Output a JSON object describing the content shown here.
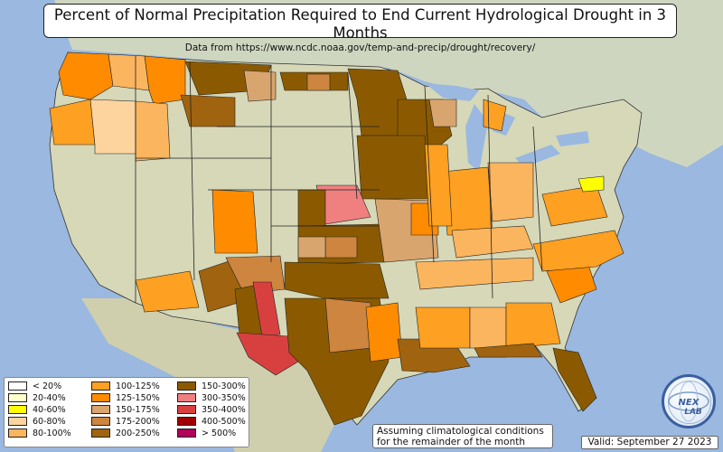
{
  "title": {
    "main": "Percent of Normal Precipitation Required to End Current Hydrological Drought in 3 Months",
    "source": "Data from https://www.ncdc.noaa.gov/temp-and-precip/drought/recovery/"
  },
  "legend": {
    "items": [
      {
        "label": "< 20%",
        "color": "#ffffff"
      },
      {
        "label": "20-40%",
        "color": "#ffffcc"
      },
      {
        "label": "40-60%",
        "color": "#ffff00"
      },
      {
        "label": "60-80%",
        "color": "#fdd49e"
      },
      {
        "label": "80-100%",
        "color": "#fbb55e"
      },
      {
        "label": "100-125%",
        "color": "#fea021"
      },
      {
        "label": "125-150%",
        "color": "#ff8c00"
      },
      {
        "label": "150-175%",
        "color": "#d9a56e"
      },
      {
        "label": "175-200%",
        "color": "#cd853f"
      },
      {
        "label": "200-250%",
        "color": "#a0630f"
      },
      {
        "label": "150-300%",
        "color": "#8b5a00"
      },
      {
        "label": "300-350%",
        "color": "#f08080"
      },
      {
        "label": "350-400%",
        "color": "#d84040"
      },
      {
        "label": "400-500%",
        "color": "#a00000"
      },
      {
        "label": "> 500%",
        "color": "#b0005a"
      }
    ]
  },
  "note": {
    "line1": "Assuming climatological conditions",
    "line2": "for the remainder of the month"
  },
  "valid": "Valid: September 27 2023",
  "logo": {
    "text": "NEXLAB"
  },
  "map": {
    "ocean_color": "#9ab8e0",
    "land_color": "#d6d8b8",
    "regions": [
      {
        "category": "125-150%",
        "color": "#ff8c00"
      },
      {
        "category": "100-125%",
        "color": "#fea021"
      },
      {
        "category": "80-100%",
        "color": "#fbb55e"
      },
      {
        "category": "60-80%",
        "color": "#fdd49e"
      },
      {
        "category": "150-300%",
        "color": "#8b5a00"
      },
      {
        "category": "175-200%",
        "color": "#cd853f"
      },
      {
        "category": "150-175%",
        "color": "#d9a56e"
      },
      {
        "category": "300-350%",
        "color": "#f08080"
      },
      {
        "category": "350-400%",
        "color": "#d84040"
      },
      {
        "category": "40-60%",
        "color": "#ffff00"
      }
    ]
  }
}
